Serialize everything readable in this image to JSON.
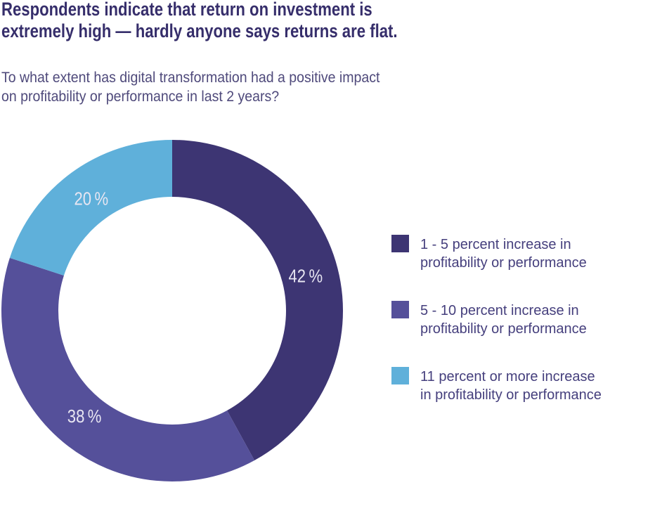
{
  "header": {
    "title_line1": "Respondents indicate that return on investment is",
    "title_line2": "extremely high — hardly anyone says returns are flat.",
    "title_color": "#362e6b"
  },
  "question": {
    "line1": "To what extent has digital transformation had a positive impact",
    "line2": "on profitability or performance in last 2 years?"
  },
  "chart_data": {
    "type": "pie",
    "subtype": "donut",
    "title": "Respondents indicate that return on investment is extremely high — hardly anyone says returns are flat.",
    "question": "To what extent has digital transformation had a positive impact on profitability or performance in last 2 years?",
    "categories": [
      "1 - 5 percent increase in profitability or performance",
      "5 - 10 percent increase in profitability or performance",
      "11 percent or more increase in profitability or performance"
    ],
    "values": [
      42,
      38,
      20
    ],
    "unit": "%",
    "value_labels": [
      "42 %",
      "38 %",
      "20 %"
    ],
    "colors": [
      "#3d3573",
      "#55509a",
      "#5fb0da"
    ],
    "slice_label_color": "#e8e6f2",
    "start_angle": "top",
    "direction": "clockwise",
    "inner_radius_ratio": 0.665,
    "legend_position": "right",
    "grid": false
  },
  "legend": {
    "items": [
      {
        "line1": "1 - 5 percent increase in",
        "line2": "profitability or performance",
        "color": "#3d3573"
      },
      {
        "line1": "5 - 10 percent increase in",
        "line2": "profitability or performance",
        "color": "#55509a"
      },
      {
        "line1": "11 percent or more increase",
        "line2": "in profitability or performance",
        "color": "#5fb0da"
      }
    ]
  }
}
